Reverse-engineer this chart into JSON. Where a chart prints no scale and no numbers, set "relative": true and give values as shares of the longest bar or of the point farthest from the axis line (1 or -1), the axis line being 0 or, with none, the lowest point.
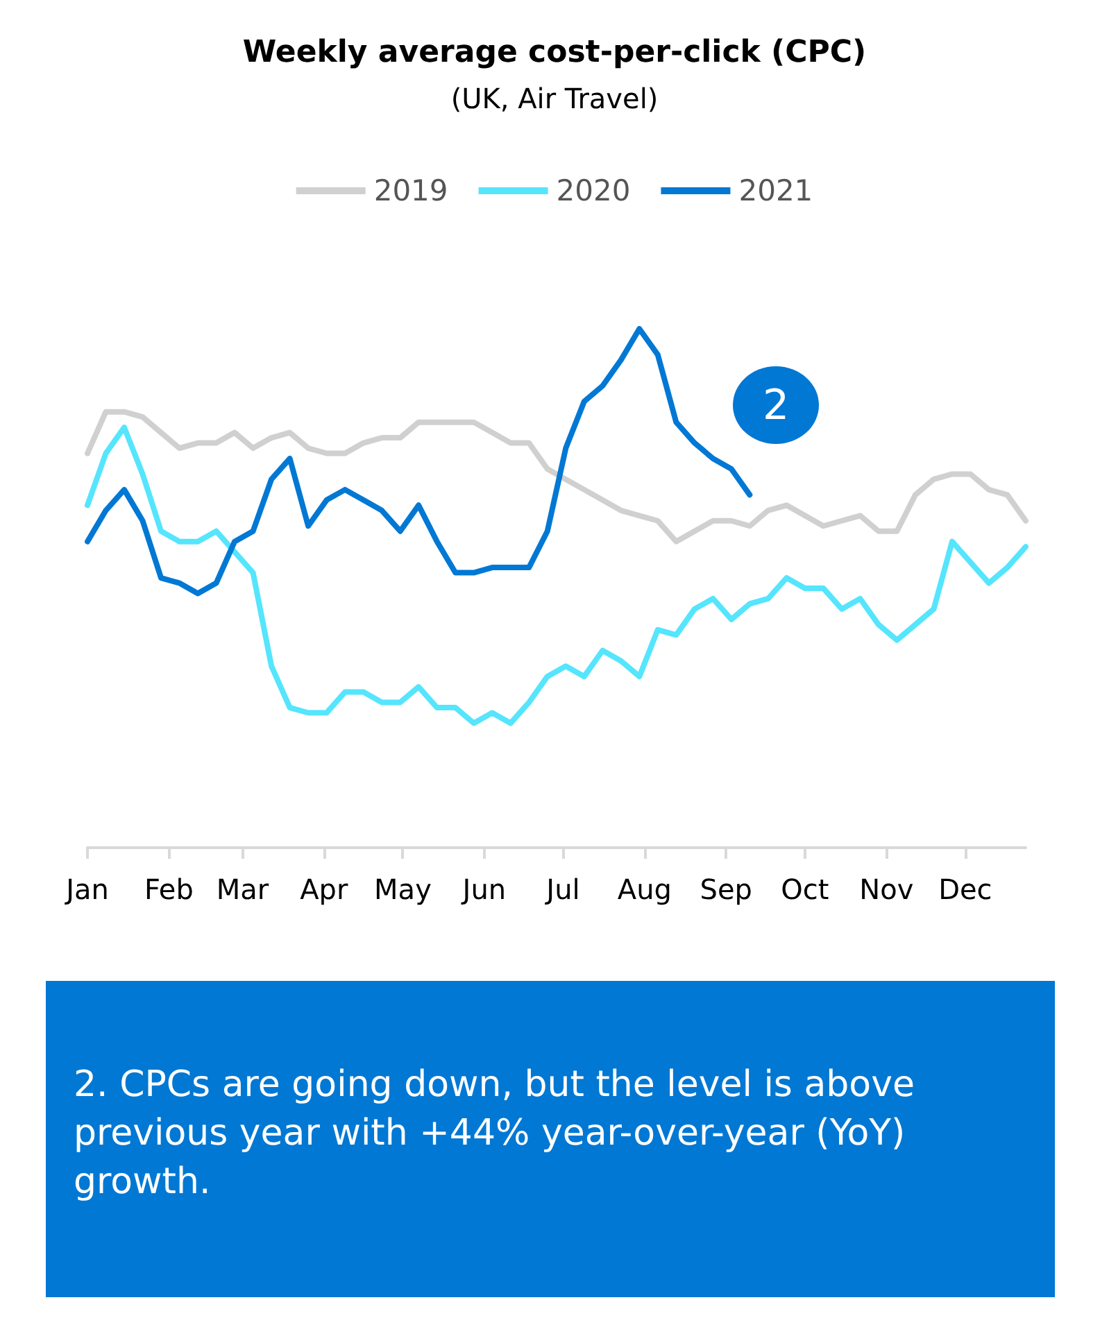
{
  "chart_data": {
    "type": "line",
    "title": "Weekly average cost-per-click (CPC)",
    "subtitle": "(UK, Air Travel)",
    "relative": true,
    "legend": "top",
    "marker": "none",
    "line_style": "solid",
    "annotations": [
      "2",
      "2. CPCs are going down, but the level is above previous year with +44% year-over-year (YoY) growth."
    ],
    "xlim": [
      "--01-01",
      "--12-24"
    ],
    "xticks": [
      {
        "value": "--01-01",
        "label": "Jan"
      },
      {
        "value": "--02-01",
        "label": "Feb"
      },
      {
        "value": "--03-01",
        "label": "Mar"
      },
      {
        "value": "--04-01",
        "label": "Apr"
      },
      {
        "value": "--05-01",
        "label": "May"
      },
      {
        "value": "--06-01",
        "label": "Jun"
      },
      {
        "value": "--07-01",
        "label": "Jul"
      },
      {
        "value": "--08-01",
        "label": "Aug"
      },
      {
        "value": "--09-01",
        "label": "Sep"
      },
      {
        "value": "--10-01",
        "label": "Oct"
      },
      {
        "value": "--11-01",
        "label": "Nov"
      },
      {
        "value": "--12-01",
        "label": "Dec"
      }
    ],
    "x": [
      "--01-01",
      "--01-08",
      "--01-15",
      "--01-22",
      "--01-29",
      "--02-05",
      "--02-12",
      "--02-19",
      "--02-26",
      "--03-05",
      "--03-12",
      "--03-19",
      "--03-26",
      "--04-02",
      "--04-09",
      "--04-16",
      "--04-23",
      "--04-30",
      "--05-07",
      "--05-14",
      "--05-21",
      "--05-28",
      "--06-04",
      "--06-11",
      "--06-18",
      "--06-25",
      "--07-02",
      "--07-09",
      "--07-16",
      "--07-23",
      "--07-30",
      "--08-06",
      "--08-13",
      "--08-20",
      "--08-27",
      "--09-03",
      "--09-10",
      "--09-17",
      "--09-24",
      "--10-01",
      "--10-08",
      "--10-15",
      "--10-22",
      "--10-29",
      "--11-05",
      "--11-12",
      "--11-19",
      "--11-26",
      "--12-03",
      "--12-10",
      "--12-17",
      "--12-24"
    ],
    "series": [
      {
        "name": "2019",
        "color": "#d0d0d0",
        "values": [
          0.76,
          0.84,
          0.84,
          0.83,
          0.8,
          0.77,
          0.78,
          0.78,
          0.8,
          0.77,
          0.79,
          0.8,
          0.77,
          0.76,
          0.76,
          0.78,
          0.79,
          0.79,
          0.82,
          0.82,
          0.82,
          0.82,
          0.8,
          0.78,
          0.78,
          0.73,
          0.71,
          0.69,
          0.67,
          0.65,
          0.64,
          0.63,
          0.59,
          0.61,
          0.63,
          0.63,
          0.62,
          0.65,
          0.66,
          0.64,
          0.62,
          0.63,
          0.64,
          0.61,
          0.61,
          0.68,
          0.71,
          0.72,
          0.72,
          0.69,
          0.68,
          0.63
        ]
      },
      {
        "name": "2020",
        "color": "#55e5fd",
        "values": [
          0.66,
          0.76,
          0.81,
          0.72,
          0.61,
          0.59,
          0.59,
          0.61,
          0.57,
          0.53,
          0.35,
          0.27,
          0.26,
          0.26,
          0.3,
          0.3,
          0.28,
          0.28,
          0.31,
          0.27,
          0.27,
          0.24,
          0.26,
          0.24,
          0.28,
          0.33,
          0.35,
          0.33,
          0.38,
          0.36,
          0.33,
          0.42,
          0.41,
          0.46,
          0.48,
          0.44,
          0.47,
          0.48,
          0.52,
          0.5,
          0.5,
          0.46,
          0.48,
          0.43,
          0.4,
          0.43,
          0.46,
          0.59,
          0.55,
          0.51,
          0.54,
          0.58
        ]
      },
      {
        "name": "2021",
        "color": "#0078d4",
        "values": [
          0.59,
          0.65,
          0.69,
          0.63,
          0.52,
          0.51,
          0.49,
          0.51,
          0.59,
          0.61,
          0.71,
          0.75,
          0.62,
          0.67,
          0.69,
          0.67,
          0.65,
          0.61,
          0.66,
          0.59,
          0.53,
          0.53,
          0.54,
          0.54,
          0.54,
          0.61,
          0.77,
          0.86,
          0.89,
          0.94,
          1.0,
          0.95,
          0.82,
          0.78,
          0.75,
          0.73,
          0.68,
          null,
          null,
          null,
          null,
          null,
          null,
          null,
          null,
          null,
          null,
          null,
          null,
          null,
          null,
          null
        ]
      }
    ]
  }
}
